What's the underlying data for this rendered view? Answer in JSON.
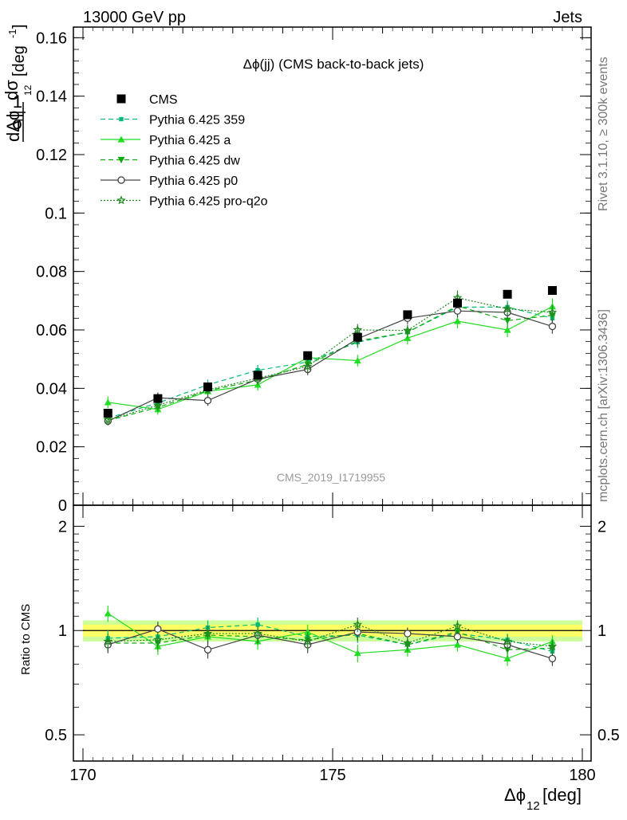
{
  "header": {
    "left": "13000 GeV pp",
    "right": "Jets"
  },
  "side_labels": {
    "rivet": "Rivet 3.1.10, ≥ 300k events",
    "mcplots": "mcplots.cern.ch [arXiv:1306.3436]"
  },
  "watermark": "CMS_2019_I1719955",
  "colors": {
    "data": "#000000",
    "py359": "#00bb77",
    "pya": "#22dd22",
    "pydw": "#11aa11",
    "pyp0": "#444444",
    "pyproq2o": "#228822",
    "band_inner": "#ffff66",
    "band_outer": "#ccff99"
  },
  "chart_data": [
    {
      "type": "scatter",
      "title": "Δϕ(jj) (CMS back-to-back jets)",
      "ylabel": "1/σ dσ/dΔϕ₁₂ [deg⁻¹]",
      "ylabel_parts": {
        "frac_num": "1",
        "frac_den": "σ",
        "dnum": "dσ",
        "dden": "dΔϕ",
        "sub": "12",
        "unit": "[deg",
        "unit_exp": "-1",
        "unit_end": "]"
      },
      "xlim": [
        170,
        180
      ],
      "ylim": [
        0,
        0.162
      ],
      "yticks": [
        "0",
        "0.02",
        "0.04",
        "0.06",
        "0.08",
        "0.1",
        "0.12",
        "0.14",
        "0.16"
      ],
      "ytick_values": [
        0,
        0.02,
        0.04,
        0.06,
        0.08,
        0.1,
        0.12,
        0.14,
        0.16
      ],
      "legend_position": "top-left",
      "x": [
        170.5,
        171.5,
        172.5,
        173.5,
        174.5,
        175.5,
        176.5,
        177.5,
        178.5,
        179.4
      ],
      "series": [
        {
          "key": "data",
          "name": "CMS",
          "values": [
            0.0315,
            0.0365,
            0.0405,
            0.0445,
            0.0512,
            0.0575,
            0.0652,
            0.0692,
            0.0722,
            0.0735
          ],
          "err": [
            0.001,
            0.001,
            0.001,
            0.001,
            0.001,
            0.001,
            0.001,
            0.001,
            0.001,
            0.001
          ]
        },
        {
          "key": "py359",
          "name": "Pythia 6.425 359",
          "values": [
            0.0298,
            0.035,
            0.0412,
            0.0462,
            0.049,
            0.0558,
            0.0592,
            0.0678,
            0.0678,
            0.064
          ],
          "err": [
            0.0015,
            0.0015,
            0.0018,
            0.0018,
            0.0018,
            0.002,
            0.002,
            0.0022,
            0.0022,
            0.0022
          ]
        },
        {
          "key": "pya",
          "name": "Pythia 6.425 a",
          "values": [
            0.0352,
            0.0328,
            0.039,
            0.0412,
            0.0505,
            0.0495,
            0.0572,
            0.063,
            0.06,
            0.068
          ],
          "err": [
            0.002,
            0.0018,
            0.0018,
            0.002,
            0.002,
            0.002,
            0.0022,
            0.0025,
            0.0025,
            0.0028
          ]
        },
        {
          "key": "pydw",
          "name": "Pythia 6.425 dw",
          "values": [
            0.029,
            0.0335,
            0.0392,
            0.0428,
            0.0482,
            0.0562,
            0.0592,
            0.0682,
            0.0632,
            0.065
          ],
          "err": [
            0.0015,
            0.0015,
            0.0018,
            0.0018,
            0.002,
            0.002,
            0.002,
            0.0022,
            0.0022,
            0.0025
          ]
        },
        {
          "key": "pyp0",
          "name": "Pythia 6.425 p0",
          "values": [
            0.0288,
            0.0368,
            0.0358,
            0.0432,
            0.0465,
            0.057,
            0.064,
            0.0665,
            0.066,
            0.0612
          ],
          "err": [
            0.0015,
            0.0018,
            0.0018,
            0.0018,
            0.002,
            0.002,
            0.002,
            0.0022,
            0.0022,
            0.0025
          ]
        },
        {
          "key": "pyproq2o",
          "name": "Pythia 6.425 pro-q2o",
          "values": [
            0.0292,
            0.0342,
            0.0395,
            0.0435,
            0.0475,
            0.06,
            0.0598,
            0.071,
            0.0672,
            0.066
          ],
          "err": [
            0.0015,
            0.0015,
            0.0018,
            0.0018,
            0.002,
            0.002,
            0.002,
            0.0025,
            0.0022,
            0.0025
          ]
        }
      ]
    },
    {
      "type": "scatter",
      "title": "",
      "xlabel": "Δϕ₁₂ [deg]",
      "xlabel_parts": {
        "main": "Δϕ",
        "sub": "12",
        "unit": " [deg]"
      },
      "ylabel": "Ratio to CMS",
      "xlim": [
        170,
        180
      ],
      "ylim": [
        0.42,
        2.3
      ],
      "ylog": true,
      "xticks": [
        "170",
        "175",
        "180"
      ],
      "xtick_values": [
        170,
        175,
        180
      ],
      "yticks": [
        "0.5",
        "1",
        "2"
      ],
      "ytick_values": [
        0.5,
        1,
        2
      ],
      "reference": 1,
      "x": [
        170.5,
        171.5,
        172.5,
        173.5,
        174.5,
        175.5,
        176.5,
        177.5,
        178.5,
        179.4
      ],
      "band_inner": 0.04,
      "band_outer": 0.07,
      "series": [
        {
          "key": "py359",
          "name": "Pythia 6.425 359",
          "values": [
            0.95,
            0.96,
            1.02,
            1.04,
            0.96,
            0.97,
            0.91,
            0.98,
            0.94,
            0.87
          ],
          "err": [
            0.05,
            0.05,
            0.05,
            0.05,
            0.05,
            0.05,
            0.04,
            0.04,
            0.04,
            0.04
          ]
        },
        {
          "key": "pya",
          "name": "Pythia 6.425 a",
          "values": [
            1.12,
            0.9,
            0.96,
            0.93,
            0.99,
            0.86,
            0.88,
            0.91,
            0.83,
            0.93
          ],
          "err": [
            0.06,
            0.05,
            0.05,
            0.05,
            0.05,
            0.05,
            0.04,
            0.04,
            0.04,
            0.04
          ]
        },
        {
          "key": "pydw",
          "name": "Pythia 6.425 dw",
          "values": [
            0.92,
            0.92,
            0.97,
            0.96,
            0.94,
            0.98,
            0.91,
            0.99,
            0.88,
            0.89
          ],
          "err": [
            0.05,
            0.05,
            0.05,
            0.05,
            0.05,
            0.05,
            0.04,
            0.04,
            0.04,
            0.04
          ]
        },
        {
          "key": "pyp0",
          "name": "Pythia 6.425 p0",
          "values": [
            0.91,
            1.01,
            0.88,
            0.97,
            0.91,
            0.99,
            0.98,
            0.96,
            0.91,
            0.83
          ],
          "err": [
            0.05,
            0.05,
            0.05,
            0.05,
            0.05,
            0.05,
            0.04,
            0.04,
            0.04,
            0.04
          ]
        },
        {
          "key": "pyproq2o",
          "name": "Pythia 6.425 pro-q2o",
          "values": [
            0.93,
            0.94,
            0.98,
            0.98,
            0.93,
            1.04,
            0.92,
            1.03,
            0.93,
            0.9
          ],
          "err": [
            0.05,
            0.05,
            0.05,
            0.05,
            0.05,
            0.05,
            0.04,
            0.04,
            0.04,
            0.04
          ]
        }
      ]
    }
  ]
}
